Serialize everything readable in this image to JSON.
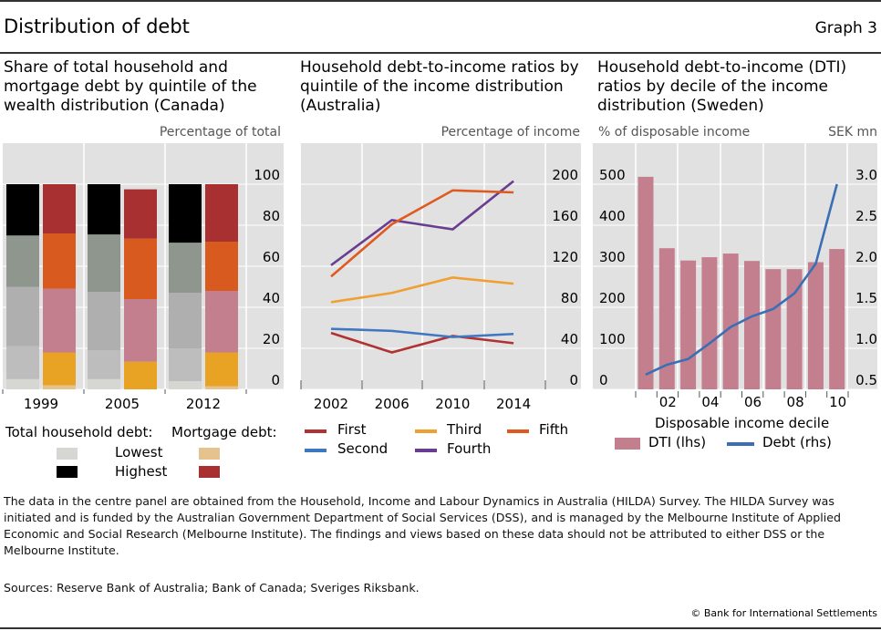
{
  "header": {
    "title": "Distribution of debt",
    "graph_number": "Graph 3"
  },
  "footnote": "The data in the centre panel are obtained from the Household, Income and Labour Dynamics in Australia (HILDA) Survey. The HILDA Survey was initiated and is funded by the Australian Government Department of Social Services (DSS), and is managed by the Melbourne Institute of Applied Economic and Social Research (Melbourne Institute). The findings and views based on these data should not be attributed to either DSS or the Melbourne Institute.",
  "sources": "Sources: Reserve Bank of Australia; Bank of Canada; Sveriges Riksbank.",
  "copyright": "© Bank for International Settlements",
  "colors": {
    "background": "#e1e1e1",
    "total": [
      "#d6d6d2",
      "#bdbdbd",
      "#afafaf",
      "#8e968e",
      "#000000"
    ],
    "mortgage": [
      "#e6c38e",
      "#e9a324",
      "#c47f8f",
      "#d95a1e",
      "#a83030"
    ],
    "lines": [
      "#b03232",
      "#3f78c0",
      "#f0a030",
      "#6a3d90",
      "#e05a20"
    ],
    "dti": "#c47f8f",
    "debt": "#3a6eb5"
  },
  "chart_data": [
    {
      "type": "stacked-bar",
      "title": "Share of total household and mortgage debt by quintile of the wealth distribution (Canada)",
      "ylabel": "Percentage of total",
      "ylim": [
        0,
        100
      ],
      "yticks": [
        "0",
        "20",
        "40",
        "60",
        "80",
        "100"
      ],
      "yaxis": "right",
      "grid": true,
      "categories": [
        "1999",
        "2005",
        "2012"
      ],
      "stack_order": [
        "Lowest",
        "Second",
        "Third",
        "Fourth",
        "Highest"
      ],
      "total_household_debt": [
        [
          5,
          16,
          29,
          25,
          25
        ],
        [
          5,
          14,
          28.5,
          28,
          24.5
        ],
        [
          4,
          16,
          27,
          24.5,
          28.5
        ]
      ],
      "mortgage_debt": [
        [
          2,
          16,
          31,
          27,
          24
        ],
        [
          0,
          13.5,
          30.5,
          29.5,
          24
        ],
        [
          1.5,
          16.5,
          30,
          24,
          28
        ]
      ],
      "legend": {
        "total_label": "Total household debt:",
        "mortgage_label": "Mortgage debt:",
        "items": [
          "Lowest",
          "Highest"
        ]
      }
    },
    {
      "type": "line",
      "title": "Household debt-to-income ratios by quintile of the income distribution (Australia)",
      "ylabel": "Percentage of income",
      "ylim": [
        0,
        200
      ],
      "yticks": [
        "0",
        "40",
        "80",
        "120",
        "160",
        "200"
      ],
      "yaxis": "right",
      "grid": true,
      "x": [
        "2002",
        "2006",
        "2010",
        "2014"
      ],
      "series": [
        {
          "name": "First",
          "values": [
            55,
            36,
            52,
            45
          ]
        },
        {
          "name": "Second",
          "values": [
            59,
            57,
            51,
            54
          ]
        },
        {
          "name": "Third",
          "values": [
            85,
            94,
            109,
            103
          ]
        },
        {
          "name": "Fourth",
          "values": [
            121,
            165,
            156,
            203
          ]
        },
        {
          "name": "Fifth",
          "values": [
            110,
            161,
            194,
            192
          ]
        }
      ]
    },
    {
      "type": "bar+line",
      "title": "Household debt-to-income (DTI) ratios by decile of the income distribution (Sweden)",
      "ylabel_left": "% of disposable income",
      "ylabel_right": "SEK mn",
      "xlabel": "Disposable income decile",
      "ylim_left": [
        0,
        500
      ],
      "yticks_left": [
        "0",
        "100",
        "200",
        "300",
        "400",
        "500"
      ],
      "ylim_right": [
        0.5,
        3.0
      ],
      "yticks_right": [
        "0.5",
        "1.0",
        "1.5",
        "2.0",
        "2.5",
        "3.0"
      ],
      "x": [
        "01",
        "02",
        "03",
        "04",
        "05",
        "06",
        "07",
        "08",
        "09",
        "10"
      ],
      "xtick_labels": [
        "02",
        "04",
        "06",
        "08",
        "10"
      ],
      "series": [
        {
          "name": "DTI (lhs)",
          "type": "bar",
          "values": [
            518,
            344,
            314,
            322,
            331,
            313,
            293,
            293,
            310,
            342
          ]
        },
        {
          "name": "Debt (rhs)",
          "type": "line",
          "values": [
            0.68,
            0.8,
            0.87,
            1.06,
            1.26,
            1.39,
            1.48,
            1.67,
            2.03,
            3.0
          ]
        }
      ]
    }
  ]
}
